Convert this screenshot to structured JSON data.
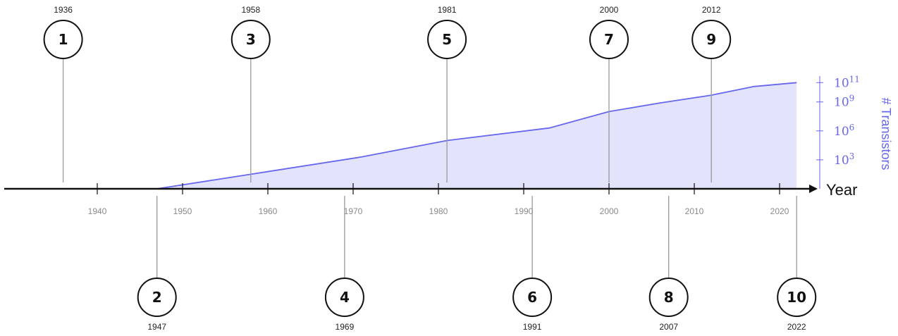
{
  "chart_data": {
    "type": "area",
    "x_axis": {
      "label": "Year",
      "range": [
        1922,
        2034
      ],
      "ticks": [
        1940,
        1950,
        1960,
        1970,
        1980,
        1990,
        2000,
        2010,
        2020
      ],
      "tick_labels": [
        "1940",
        "1950",
        "1960",
        "1970",
        "1980",
        "1990",
        "2000",
        "2010",
        "2020"
      ]
    },
    "y_axis": {
      "label": "# Transistors",
      "scale": "log10",
      "range": [
        0,
        11.6
      ],
      "ticks": [
        3,
        6,
        9,
        11
      ],
      "tick_labels": [
        {
          "base": "10",
          "exp": "3"
        },
        {
          "base": "10",
          "exp": "6"
        },
        {
          "base": "10",
          "exp": "9"
        },
        {
          "base": "10",
          "exp": "11"
        }
      ]
    },
    "series": [
      {
        "x": [
          1947,
          1958,
          1971,
          1981,
          1993,
          2000,
          2006,
          2012,
          2017,
          2022
        ],
        "y": [
          0,
          1.5,
          3.3,
          5.0,
          6.3,
          8.0,
          8.9,
          9.7,
          10.6,
          11.0
        ],
        "color": "#6666ee",
        "fill": "#e3e3fb"
      }
    ],
    "markers": [
      {
        "number": "1",
        "year": "1936",
        "position": "top"
      },
      {
        "number": "2",
        "year": "1947",
        "position": "bottom"
      },
      {
        "number": "3",
        "year": "1958",
        "position": "top"
      },
      {
        "number": "4",
        "year": "1969",
        "position": "bottom"
      },
      {
        "number": "5",
        "year": "1981",
        "position": "top"
      },
      {
        "number": "6",
        "year": "1991",
        "position": "bottom"
      },
      {
        "number": "7",
        "year": "2000",
        "position": "top"
      },
      {
        "number": "8",
        "year": "2007",
        "position": "bottom"
      },
      {
        "number": "9",
        "year": "2012",
        "position": "top"
      },
      {
        "number": "10",
        "year": "2022",
        "position": "bottom"
      }
    ],
    "grid": false,
    "legend": "none",
    "colors": {
      "axis": "#111111",
      "series": "#6666ee",
      "area": "#e3e3fb",
      "connector": "#999999",
      "tick_label": "#8a8a8a"
    }
  }
}
